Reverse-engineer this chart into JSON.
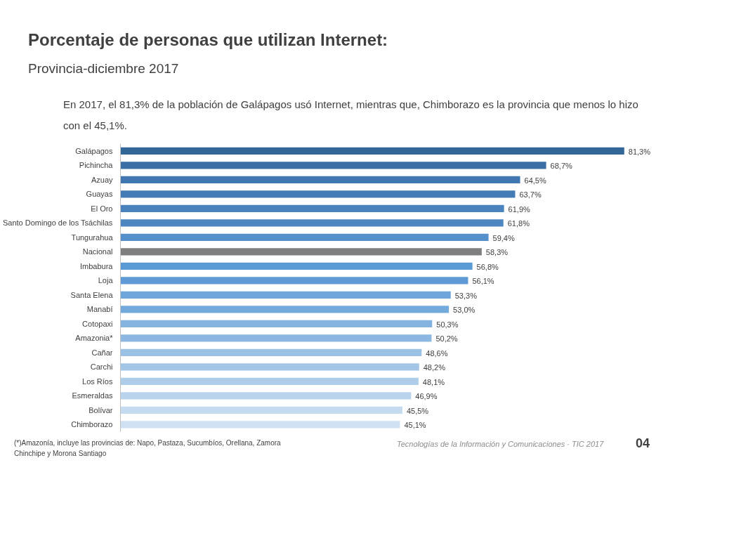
{
  "chart_data": {
    "type": "bar",
    "orientation": "horizontal",
    "title": "Porcentaje de personas que utilizan Internet:",
    "subtitle": "Provincia-diciembre 2017",
    "annotations": [
      "En 2017, el 81,3% de la población de Galápagos usó Internet, mientras que, Chimborazo es la provincia que menos lo hizo con el 45,1%.",
      "(*)Amazonía, incluye las provincias de: Napo, Pastaza, Sucumbíos, Orellana, Zamora Chinchipe y Morona Santiago",
      "Tecnologías de la Información y Comunicaciones · TIC 2017",
      "04"
    ],
    "categories": [
      "Galápagos",
      "Pichincha",
      "Azuay",
      "Guayas",
      "El Oro",
      "Santo Domingo de los Tsáchilas",
      "Tungurahua",
      "Nacional",
      "Imbabura",
      "Loja",
      "Santa Elena",
      "Manabí",
      "Cotopaxi",
      "Amazonia*",
      "Cañar",
      "Carchi",
      "Los Ríos",
      "Esmeraldas",
      "Bolívar",
      "Chimborazo"
    ],
    "values": [
      81.3,
      68.7,
      64.5,
      63.7,
      61.9,
      61.8,
      59.4,
      58.3,
      56.8,
      56.1,
      53.3,
      53.0,
      50.3,
      50.2,
      48.6,
      48.2,
      48.1,
      46.9,
      45.5,
      45.1
    ],
    "value_labels": [
      "81,3%",
      "68,7%",
      "64,5%",
      "63,7%",
      "61,9%",
      "61,8%",
      "59,4%",
      "58,3%",
      "56,8%",
      "56,1%",
      "53,3%",
      "53,0%",
      "50,3%",
      "50,2%",
      "48,6%",
      "48,2%",
      "48,1%",
      "46,9%",
      "45,5%",
      "45,1%"
    ],
    "colors": [
      "#336699",
      "#3a6ea5",
      "#4177b0",
      "#447cb5",
      "#4a82bd",
      "#4d86c0",
      "#5490cc",
      "#7f7f7f",
      "#5b9bd5",
      "#5e9bd6",
      "#6ea5da",
      "#74a9dc",
      "#84b3e0",
      "#8bb7e1",
      "#9bc1e5",
      "#a3c6e7",
      "#aecde9",
      "#bad4ec",
      "#c5dbef",
      "#cfe1f2"
    ],
    "grid": false
  }
}
